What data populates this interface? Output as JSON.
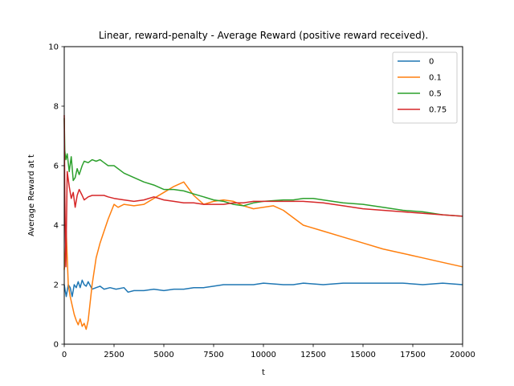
{
  "chart_data": {
    "type": "line",
    "title": "Linear, reward-penalty - Average Reward (positive reward received).",
    "xlabel": "t",
    "ylabel": "Average Reward at t",
    "xlim": [
      0,
      20000
    ],
    "ylim": [
      0,
      10
    ],
    "x_ticks": [
      0,
      2500,
      5000,
      7500,
      10000,
      12500,
      15000,
      17500,
      20000
    ],
    "y_ticks": [
      0,
      2,
      4,
      6,
      8,
      10
    ],
    "grid": false,
    "legend_position": "upper right",
    "series": [
      {
        "name": "0",
        "color": "#1f77b4",
        "x": [
          0,
          50,
          100,
          200,
          300,
          400,
          500,
          600,
          700,
          800,
          900,
          1000,
          1100,
          1200,
          1400,
          1600,
          1800,
          2000,
          2300,
          2600,
          3000,
          3200,
          3500,
          4000,
          4500,
          5000,
          5500,
          6000,
          6500,
          7000,
          7500,
          8000,
          8500,
          9000,
          9500,
          10000,
          11000,
          11500,
          12000,
          13000,
          14000,
          15000,
          16000,
          17000,
          18000,
          19000,
          20000
        ],
        "y": [
          2.0,
          1.8,
          1.6,
          2.0,
          1.9,
          1.6,
          2.0,
          1.9,
          2.1,
          1.9,
          2.15,
          2.0,
          1.95,
          2.1,
          1.85,
          1.9,
          1.95,
          1.85,
          1.9,
          1.85,
          1.9,
          1.75,
          1.8,
          1.8,
          1.85,
          1.8,
          1.85,
          1.85,
          1.9,
          1.9,
          1.95,
          2.0,
          2.0,
          2.0,
          2.0,
          2.05,
          2.0,
          2.0,
          2.05,
          2.0,
          2.05,
          2.05,
          2.05,
          2.05,
          2.0,
          2.05,
          2.0
        ]
      },
      {
        "name": "0.1",
        "color": "#ff7f0e",
        "x": [
          0,
          50,
          100,
          200,
          300,
          400,
          500,
          600,
          700,
          800,
          900,
          1000,
          1100,
          1200,
          1400,
          1600,
          1800,
          2000,
          2200,
          2500,
          2700,
          3000,
          3500,
          4000,
          4500,
          5000,
          5500,
          6000,
          6500,
          7000,
          7500,
          8000,
          8500,
          9000,
          9500,
          10000,
          10500,
          11000,
          12000,
          13000,
          14000,
          15000,
          16000,
          17000,
          18000,
          19000,
          20000
        ],
        "y": [
          2.5,
          3.0,
          3.8,
          2.0,
          1.6,
          1.3,
          1.0,
          0.8,
          0.65,
          0.85,
          0.6,
          0.7,
          0.5,
          0.8,
          2.0,
          2.9,
          3.4,
          3.8,
          4.2,
          4.7,
          4.6,
          4.7,
          4.65,
          4.7,
          4.9,
          5.1,
          5.3,
          5.45,
          5.0,
          4.7,
          4.8,
          4.85,
          4.8,
          4.65,
          4.55,
          4.6,
          4.65,
          4.5,
          4.0,
          3.8,
          3.6,
          3.4,
          3.2,
          3.05,
          2.9,
          2.75,
          2.6
        ]
      },
      {
        "name": "0.5",
        "color": "#2ca02c",
        "x": [
          0,
          30,
          80,
          150,
          250,
          350,
          450,
          550,
          650,
          750,
          900,
          1000,
          1200,
          1400,
          1600,
          1800,
          2000,
          2200,
          2500,
          3000,
          3500,
          4000,
          4500,
          5000,
          5500,
          6000,
          6500,
          7000,
          7500,
          8000,
          8500,
          9000,
          9500,
          10000,
          11000,
          11500,
          12000,
          12500,
          13000,
          14000,
          15000,
          16000,
          17000,
          18000,
          19000,
          20000
        ],
        "y": [
          7.6,
          6.5,
          6.2,
          6.4,
          5.8,
          6.3,
          5.5,
          5.6,
          5.9,
          5.7,
          6.0,
          6.15,
          6.1,
          6.2,
          6.15,
          6.2,
          6.1,
          6.0,
          6.0,
          5.75,
          5.6,
          5.45,
          5.35,
          5.2,
          5.2,
          5.15,
          5.05,
          4.95,
          4.85,
          4.8,
          4.7,
          4.65,
          4.75,
          4.8,
          4.85,
          4.85,
          4.9,
          4.9,
          4.85,
          4.75,
          4.7,
          4.6,
          4.5,
          4.45,
          4.35,
          4.3
        ]
      },
      {
        "name": "0.75",
        "color": "#d62728",
        "x": [
          0,
          30,
          80,
          150,
          250,
          350,
          450,
          550,
          650,
          750,
          900,
          1000,
          1200,
          1400,
          1600,
          1800,
          2000,
          2200,
          2500,
          3000,
          3500,
          4000,
          4500,
          5000,
          5500,
          6000,
          6500,
          7000,
          7500,
          8000,
          8500,
          9000,
          9500,
          10000,
          11000,
          12000,
          13000,
          14000,
          15000,
          16000,
          17000,
          18000,
          19000,
          20000
        ],
        "y": [
          7.7,
          5.0,
          2.6,
          5.8,
          5.3,
          4.9,
          5.1,
          4.6,
          5.0,
          5.2,
          5.0,
          4.85,
          4.95,
          5.0,
          5.0,
          5.0,
          5.0,
          4.95,
          4.9,
          4.85,
          4.8,
          4.85,
          4.95,
          4.85,
          4.8,
          4.75,
          4.75,
          4.7,
          4.7,
          4.7,
          4.75,
          4.75,
          4.8,
          4.8,
          4.8,
          4.8,
          4.75,
          4.65,
          4.55,
          4.5,
          4.45,
          4.4,
          4.35,
          4.3
        ]
      }
    ]
  }
}
